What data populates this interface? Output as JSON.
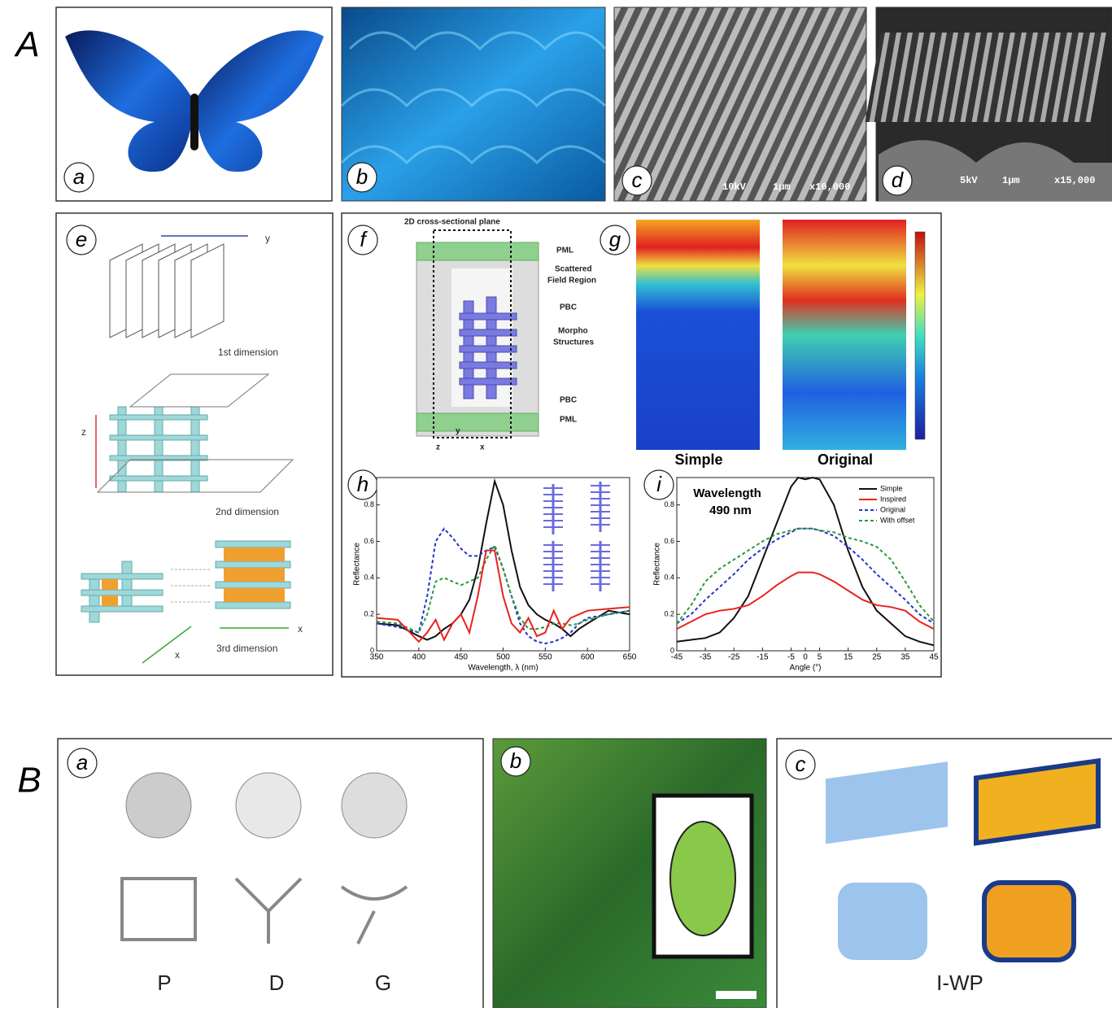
{
  "section_labels": [
    "A",
    "B"
  ],
  "panel_labels_A": [
    "a",
    "b",
    "c",
    "d",
    "e",
    "f",
    "g",
    "h",
    "i"
  ],
  "panel_labels_B": [
    "a",
    "b",
    "c"
  ],
  "panel_c": {
    "sem": [
      "10kV",
      "1µm",
      "x10,000"
    ]
  },
  "panel_d": {
    "sem": [
      "5kV",
      "1µm",
      "x15,000"
    ]
  },
  "panel_e": {
    "texts": [
      "1st dimension",
      "2nd dimension",
      "3rd dimension"
    ],
    "axes": [
      "y",
      "z",
      "x",
      "x"
    ]
  },
  "panel_f": {
    "title": "2D cross-sectional plane",
    "pml_top": "PML",
    "scattered": [
      "Scattered",
      "Field Region"
    ],
    "pbc_top": "PBC",
    "morpho": [
      "Morpho",
      "Structures"
    ],
    "pbc_bottom": "PBC",
    "pml_bottom": "PML",
    "axes": [
      "z",
      "y",
      "x"
    ]
  },
  "panel_g": {
    "captions": [
      "Simple",
      "Original"
    ]
  },
  "panel_B_a": {
    "captions": [
      "P",
      "D",
      "G"
    ]
  },
  "panel_B_c": {
    "caption": "I-WP"
  },
  "chart_data": [
    {
      "type": "line",
      "xlabel": "Wavelength, λ (nm)",
      "ylabel": "Reflectance",
      "x": [
        350,
        375,
        400,
        410,
        420,
        430,
        440,
        450,
        460,
        470,
        480,
        490,
        500,
        510,
        520,
        530,
        540,
        550,
        560,
        570,
        580,
        590,
        600,
        625,
        650
      ],
      "xlim": [
        350,
        650
      ],
      "xticks": [
        350,
        400,
        450,
        500,
        550,
        600,
        650
      ],
      "ylim": [
        0,
        0.95
      ],
      "yticks": [
        0,
        0.2,
        0.4,
        0.6,
        0.8
      ],
      "series": [
        {
          "color": "#111111",
          "style": "solid",
          "values": [
            0.15,
            0.14,
            0.08,
            0.06,
            0.08,
            0.12,
            0.15,
            0.2,
            0.28,
            0.45,
            0.7,
            0.93,
            0.8,
            0.55,
            0.35,
            0.25,
            0.2,
            0.17,
            0.15,
            0.12,
            0.08,
            0.12,
            0.15,
            0.22,
            0.2
          ]
        },
        {
          "color": "#2233cc",
          "style": "dashed",
          "values": [
            0.15,
            0.13,
            0.1,
            0.3,
            0.6,
            0.67,
            0.62,
            0.56,
            0.52,
            0.52,
            0.55,
            0.57,
            0.45,
            0.3,
            0.15,
            0.08,
            0.05,
            0.04,
            0.05,
            0.07,
            0.1,
            0.15,
            0.18,
            0.2,
            0.22
          ]
        },
        {
          "color": "#2a9a3a",
          "style": "dashed",
          "values": [
            0.16,
            0.15,
            0.1,
            0.2,
            0.38,
            0.4,
            0.38,
            0.36,
            0.38,
            0.4,
            0.5,
            0.58,
            0.45,
            0.3,
            0.18,
            0.12,
            0.12,
            0.13,
            0.15,
            0.15,
            0.14,
            0.15,
            0.17,
            0.2,
            0.22
          ]
        },
        {
          "color": "#e8231c",
          "style": "solid",
          "values": [
            0.18,
            0.17,
            0.05,
            0.1,
            0.17,
            0.06,
            0.15,
            0.2,
            0.1,
            0.3,
            0.55,
            0.55,
            0.3,
            0.15,
            0.1,
            0.18,
            0.08,
            0.1,
            0.22,
            0.12,
            0.18,
            0.2,
            0.22,
            0.23,
            0.24
          ]
        }
      ]
    },
    {
      "type": "line",
      "xlabel": "Angle (°)",
      "ylabel": "Reflectance",
      "annotation": [
        "Wavelength",
        "490 nm"
      ],
      "legend": "upper right",
      "x": [
        -45,
        -40,
        -35,
        -30,
        -25,
        -20,
        -15,
        -10,
        -5,
        -2.5,
        0,
        2.5,
        5,
        10,
        15,
        20,
        25,
        30,
        35,
        40,
        45
      ],
      "xlim": [
        -45,
        45
      ],
      "xticks": [
        -45,
        -35,
        -25,
        -15,
        -5,
        0,
        5,
        15,
        25,
        35,
        45
      ],
      "ylim": [
        0,
        0.95
      ],
      "yticks": [
        0,
        0.2,
        0.4,
        0.6,
        0.8
      ],
      "series": [
        {
          "name": "Simple",
          "color": "#111111",
          "style": "solid",
          "values": [
            0.05,
            0.06,
            0.07,
            0.1,
            0.18,
            0.3,
            0.5,
            0.7,
            0.9,
            0.95,
            0.94,
            0.95,
            0.94,
            0.8,
            0.55,
            0.35,
            0.22,
            0.15,
            0.08,
            0.05,
            0.03
          ]
        },
        {
          "name": "Inspired",
          "color": "#e8231c",
          "style": "solid",
          "values": [
            0.12,
            0.16,
            0.2,
            0.22,
            0.23,
            0.25,
            0.3,
            0.36,
            0.41,
            0.43,
            0.43,
            0.43,
            0.42,
            0.38,
            0.33,
            0.28,
            0.25,
            0.24,
            0.22,
            0.16,
            0.12
          ]
        },
        {
          "name": "Original",
          "color": "#2233cc",
          "style": "dashed",
          "values": [
            0.15,
            0.2,
            0.28,
            0.35,
            0.42,
            0.5,
            0.56,
            0.61,
            0.65,
            0.67,
            0.67,
            0.67,
            0.66,
            0.63,
            0.57,
            0.5,
            0.42,
            0.35,
            0.28,
            0.2,
            0.15
          ]
        },
        {
          "name": "With offset",
          "color": "#2a9a3a",
          "style": "dashed",
          "values": [
            0.15,
            0.25,
            0.38,
            0.45,
            0.5,
            0.55,
            0.6,
            0.64,
            0.66,
            0.67,
            0.67,
            0.67,
            0.66,
            0.65,
            0.62,
            0.6,
            0.57,
            0.5,
            0.38,
            0.25,
            0.16
          ]
        }
      ]
    }
  ]
}
